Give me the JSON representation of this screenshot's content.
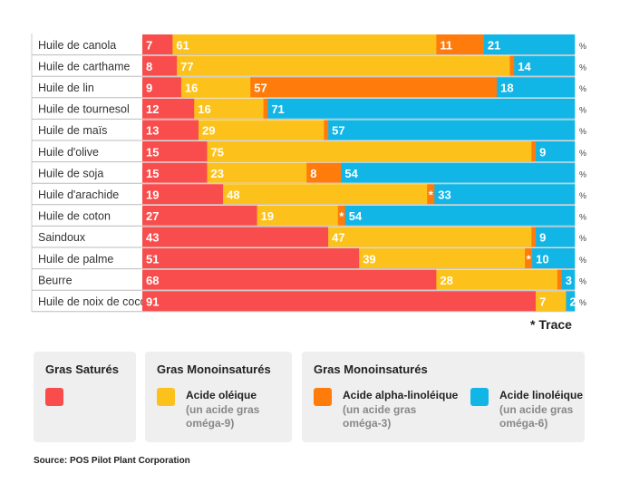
{
  "chart_data": {
    "type": "bar",
    "stacked": true,
    "orientation": "horizontal",
    "unit": "%",
    "categories": [
      "Huile de canola",
      "Huile de carthame",
      "Huile de lin",
      "Huile de tournesol",
      "Huile de maïs",
      "Huile d'olive",
      "Huile de soja",
      "Huile d'arachide",
      "Huile de coton",
      "Saindoux",
      "Huile de palme",
      "Beurre",
      "Huile de noix de coco"
    ],
    "series": [
      {
        "name": "Gras Saturés",
        "color": "#f94d4d",
        "values": [
          7,
          8,
          9,
          12,
          13,
          15,
          15,
          19,
          27,
          43,
          51,
          68,
          91
        ]
      },
      {
        "name": "Acide oléique",
        "color": "#fcc21b",
        "values": [
          61,
          77,
          16,
          16,
          29,
          75,
          23,
          48,
          19,
          47,
          39,
          28,
          7
        ]
      },
      {
        "name": "Acide alpha-linoléique",
        "color": "#fe7b0c",
        "values": [
          11,
          1,
          57,
          1,
          1,
          1,
          8,
          "*",
          "*",
          1,
          "*",
          1,
          0
        ]
      },
      {
        "name": "Acide linoléique",
        "color": "#12b6e6",
        "values": [
          21,
          14,
          18,
          71,
          57,
          9,
          54,
          33,
          54,
          9,
          10,
          3,
          2
        ]
      }
    ],
    "trace_symbol": "*",
    "trace_note": "* Trace"
  },
  "legend": {
    "group1": {
      "heading": "Gras Saturés"
    },
    "group2": {
      "heading": "Gras Monoinsaturés",
      "label": "Acide oléique",
      "sub": "(un acide gras oméga-9)"
    },
    "group3": {
      "heading": "Gras Monoinsaturés",
      "item1": {
        "label": "Acide alpha-linoléique",
        "sub": "(un acide gras oméga-3)"
      },
      "item2": {
        "label": "Acide linoléique",
        "sub": "(un acide gras oméga-6)"
      }
    }
  },
  "source": "Source: POS Pilot Plant Corporation"
}
